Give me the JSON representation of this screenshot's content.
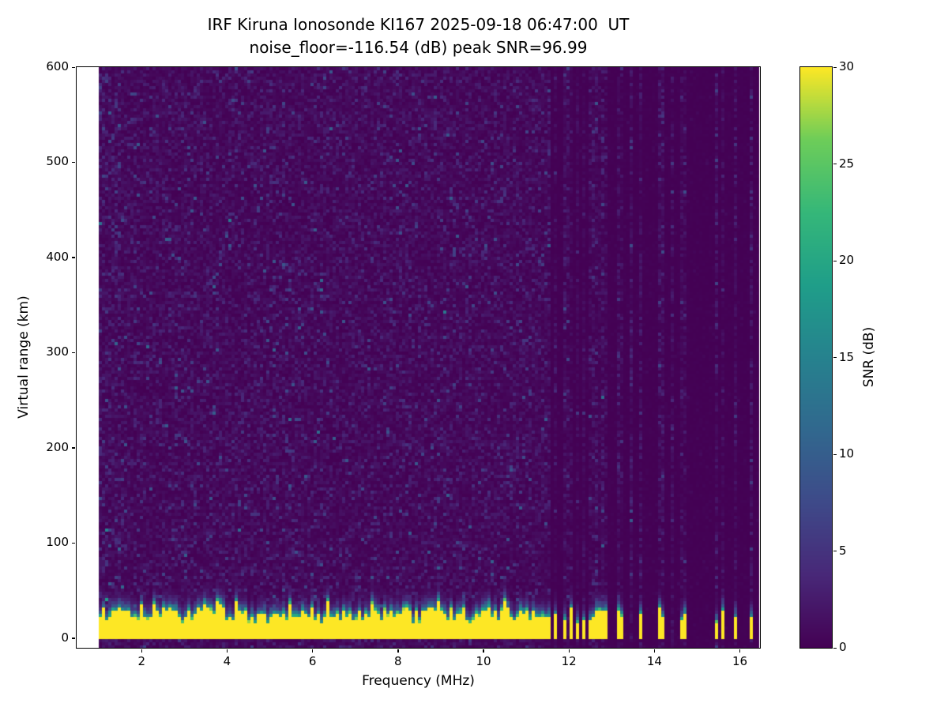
{
  "figure": {
    "background": "#ffffff"
  },
  "chart_data": {
    "type": "heatmap",
    "title": "IRF Kiruna Ionosonde KI167 2025-09-18 06:47:00  UT",
    "subtitle": "noise_floor=-116.54 (dB) peak SNR=96.99",
    "station": "IRF Kiruna Ionosonde KI167",
    "timestamp_ut": "2025-09-18 06:47:00",
    "noise_floor_db": -116.54,
    "peak_snr_db": 96.99,
    "xlabel": "Frequency (MHz)",
    "ylabel": "Virtual range (km)",
    "colorbar_label": "SNR (dB)",
    "colormap": "viridis",
    "xlim": [
      0.48,
      16.47
    ],
    "ylim": [
      -10,
      600
    ],
    "snr_range_db": [
      0,
      30
    ],
    "xticks": [
      2,
      4,
      6,
      8,
      10,
      12,
      14,
      16
    ],
    "yticks": [
      0,
      100,
      200,
      300,
      400,
      500,
      600
    ],
    "colorbar_ticks": [
      0,
      5,
      10,
      15,
      20,
      25,
      30
    ],
    "grid": false,
    "legend": "colorbar-right",
    "features": {
      "data_freq_range_mhz": [
        0.97,
        16.42
      ],
      "background_noise_snr_db": [
        0,
        3
      ],
      "speckle_max_snr_db": 12,
      "ground_return_band": {
        "range_km": [
          0,
          30
        ],
        "snr_db": 30,
        "jagged_top_km": [
          16,
          40
        ],
        "transition_fade_km": 22
      },
      "sparse_column_region_start_mhz": 11.6,
      "sparse_column_active_fraction": 0.45,
      "render_seed": 20250918,
      "description": "Dense low-SNR viridis noise speckle across 1-11.6 MHz at all virtual ranges; saturated yellow ground-return band below ~30 km with teal/green fade above it; above 11.6 MHz sounding becomes discrete so only sparse vertical columns (including isolated yellow band segments) appear against a darker background."
    }
  }
}
